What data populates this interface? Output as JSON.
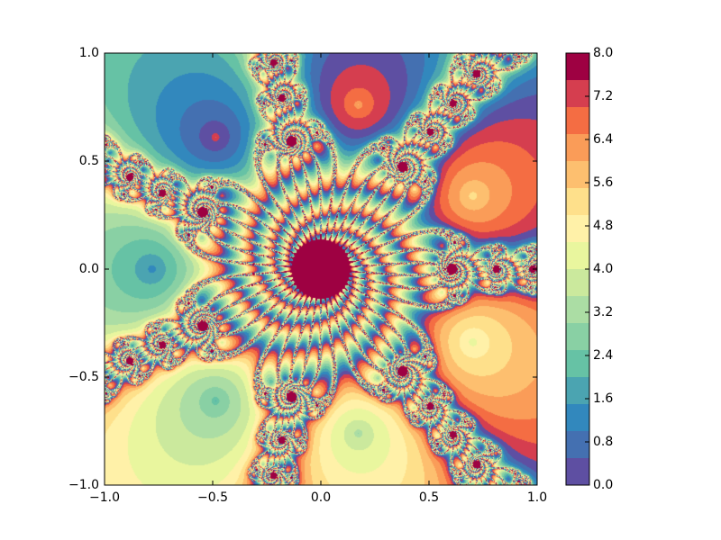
{
  "chart_data": {
    "type": "contourf",
    "xlim": [
      -1,
      1
    ],
    "ylim": [
      -1,
      1
    ],
    "xticks": [
      {
        "value": -1,
        "label": "−1.0"
      },
      {
        "value": -0.5,
        "label": "−0.5"
      },
      {
        "value": 0,
        "label": "0.0"
      },
      {
        "value": 0.5,
        "label": "0.5"
      },
      {
        "value": 1,
        "label": "1.0"
      }
    ],
    "yticks": [
      {
        "value": -1,
        "label": "−1.0"
      },
      {
        "value": -0.5,
        "label": "−0.5"
      },
      {
        "value": 0,
        "label": "0.0"
      },
      {
        "value": 0.5,
        "label": "0.5"
      },
      {
        "value": 1,
        "label": "1.0"
      }
    ],
    "colorbar": {
      "levels": [
        0,
        0.5,
        1,
        1.5,
        2,
        2.5,
        3,
        3.5,
        4,
        4.5,
        5,
        5.5,
        6,
        6.5,
        7,
        7.5,
        8
      ],
      "colors": [
        "#5e4fa2",
        "#4470b1",
        "#3288bd",
        "#4ba4b1",
        "#66c2a5",
        "#89d0a4",
        "#abdda4",
        "#cbe99d",
        "#e9f69e",
        "#fff1a8",
        "#fee08b",
        "#fdbf6f",
        "#fa9c58",
        "#f46d43",
        "#d53e4f",
        "#9e0142"
      ],
      "ticks": [
        {
          "value": 0,
          "label": "0.0"
        },
        {
          "value": 0.8,
          "label": "0.8"
        },
        {
          "value": 1.6,
          "label": "1.6"
        },
        {
          "value": 2.4,
          "label": "2.4"
        },
        {
          "value": 3.2,
          "label": "3.2"
        },
        {
          "value": 4,
          "label": "4.0"
        },
        {
          "value": 4.8,
          "label": "4.8"
        },
        {
          "value": 5.6,
          "label": "5.6"
        },
        {
          "value": 6.4,
          "label": "6.4"
        },
        {
          "value": 7.2,
          "label": "7.2"
        },
        {
          "value": 8,
          "label": "8.0"
        }
      ]
    }
  }
}
